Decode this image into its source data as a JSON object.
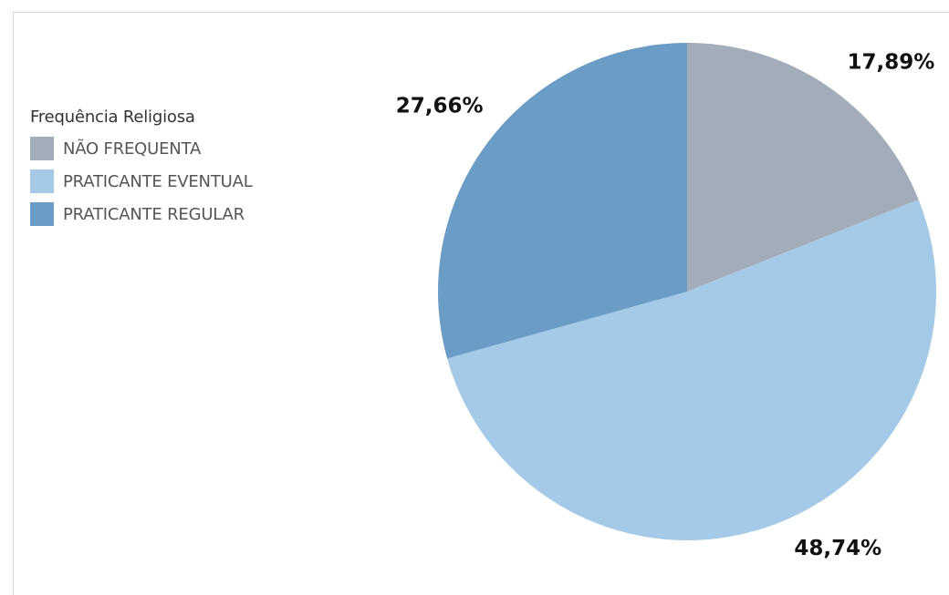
{
  "chart_data": {
    "type": "pie",
    "legend_title": "Frequência Religiosa",
    "legend_position": "left",
    "slices": [
      {
        "name": "NÃO FREQUENTA",
        "value": 17.89,
        "label": "17,89%",
        "color": "#a3acb9"
      },
      {
        "name": "PRATICANTE EVENTUAL",
        "value": 48.74,
        "label": "48,74%",
        "color": "#a5cae7"
      },
      {
        "name": "PRATICANTE REGULAR",
        "value": 27.66,
        "label": "27,66%",
        "color": "#6a9cc6"
      }
    ]
  }
}
